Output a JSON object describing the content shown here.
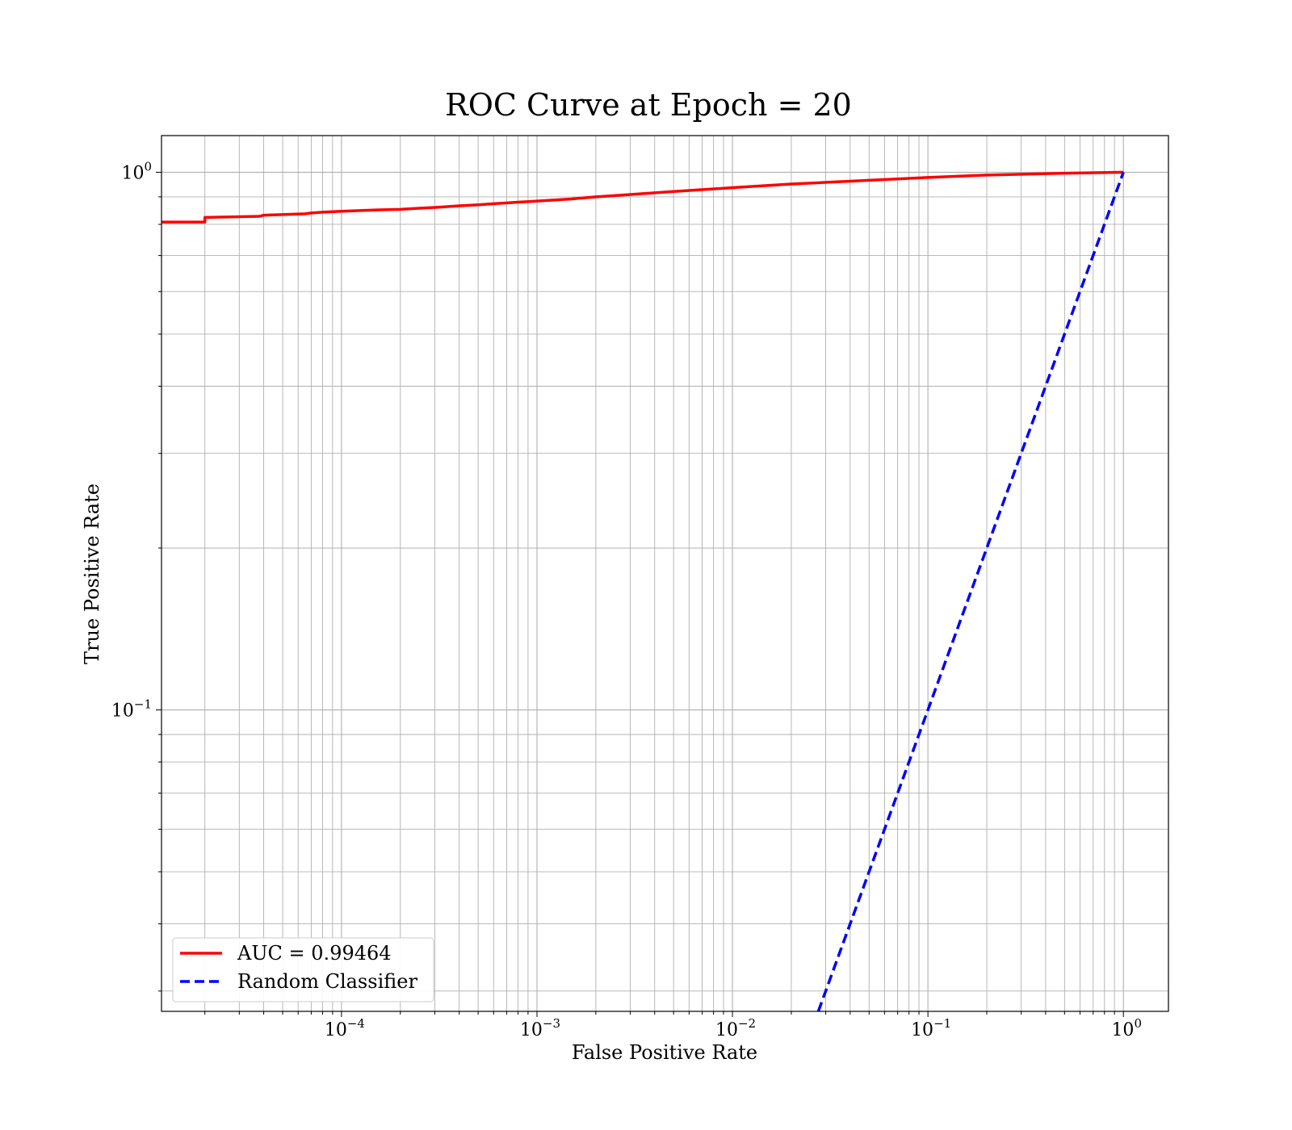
{
  "chart_data": {
    "type": "line",
    "title": "ROC Curve at Epoch = 20",
    "xlabel": "False Positive Rate",
    "ylabel": "True Positive Rate",
    "xscale": "log",
    "yscale": "log",
    "xlim": [
      1.2e-05,
      1.7
    ],
    "ylim": [
      0.0275,
      1.17
    ],
    "grid": true,
    "grid_minor": true,
    "legend_position": "lower-left",
    "x_ticks": [
      {
        "base": "10",
        "exp": "−4",
        "value": 0.0001
      },
      {
        "base": "10",
        "exp": "−3",
        "value": 0.001
      },
      {
        "base": "10",
        "exp": "−2",
        "value": 0.01
      },
      {
        "base": "10",
        "exp": "−1",
        "value": 0.1
      },
      {
        "base": "10",
        "exp": "0",
        "value": 1
      }
    ],
    "y_ticks": [
      {
        "base": "10",
        "exp": "0",
        "value": 1
      },
      {
        "base": "10",
        "exp": "−1",
        "value": 0.1
      }
    ],
    "series": [
      {
        "name": "AUC = 0.99464",
        "color": "#ff0000",
        "style": "solid",
        "x": [
          1.2e-05,
          2e-05,
          2e-05,
          3.8e-05,
          4e-05,
          6.5e-05,
          7e-05,
          8e-05,
          0.0001,
          0.00015,
          0.0002,
          0.00022,
          0.00025,
          0.0003,
          0.0004,
          0.0005,
          0.0006,
          0.001,
          0.0015,
          0.002,
          0.003,
          0.005,
          0.01,
          0.02,
          0.05,
          0.1,
          0.2,
          0.5,
          1.0
        ],
        "y": [
          0.808,
          0.808,
          0.824,
          0.828,
          0.832,
          0.837,
          0.84,
          0.843,
          0.846,
          0.851,
          0.853,
          0.855,
          0.857,
          0.86,
          0.866,
          0.87,
          0.874,
          0.884,
          0.892,
          0.9,
          0.909,
          0.921,
          0.936,
          0.951,
          0.966,
          0.978,
          0.988,
          0.996,
          1.0
        ]
      },
      {
        "name": "Random Classifier",
        "color": "#0000ff",
        "style": "dashed",
        "x": [
          0.0275,
          1.0
        ],
        "y": [
          0.0275,
          1.0
        ]
      }
    ]
  }
}
